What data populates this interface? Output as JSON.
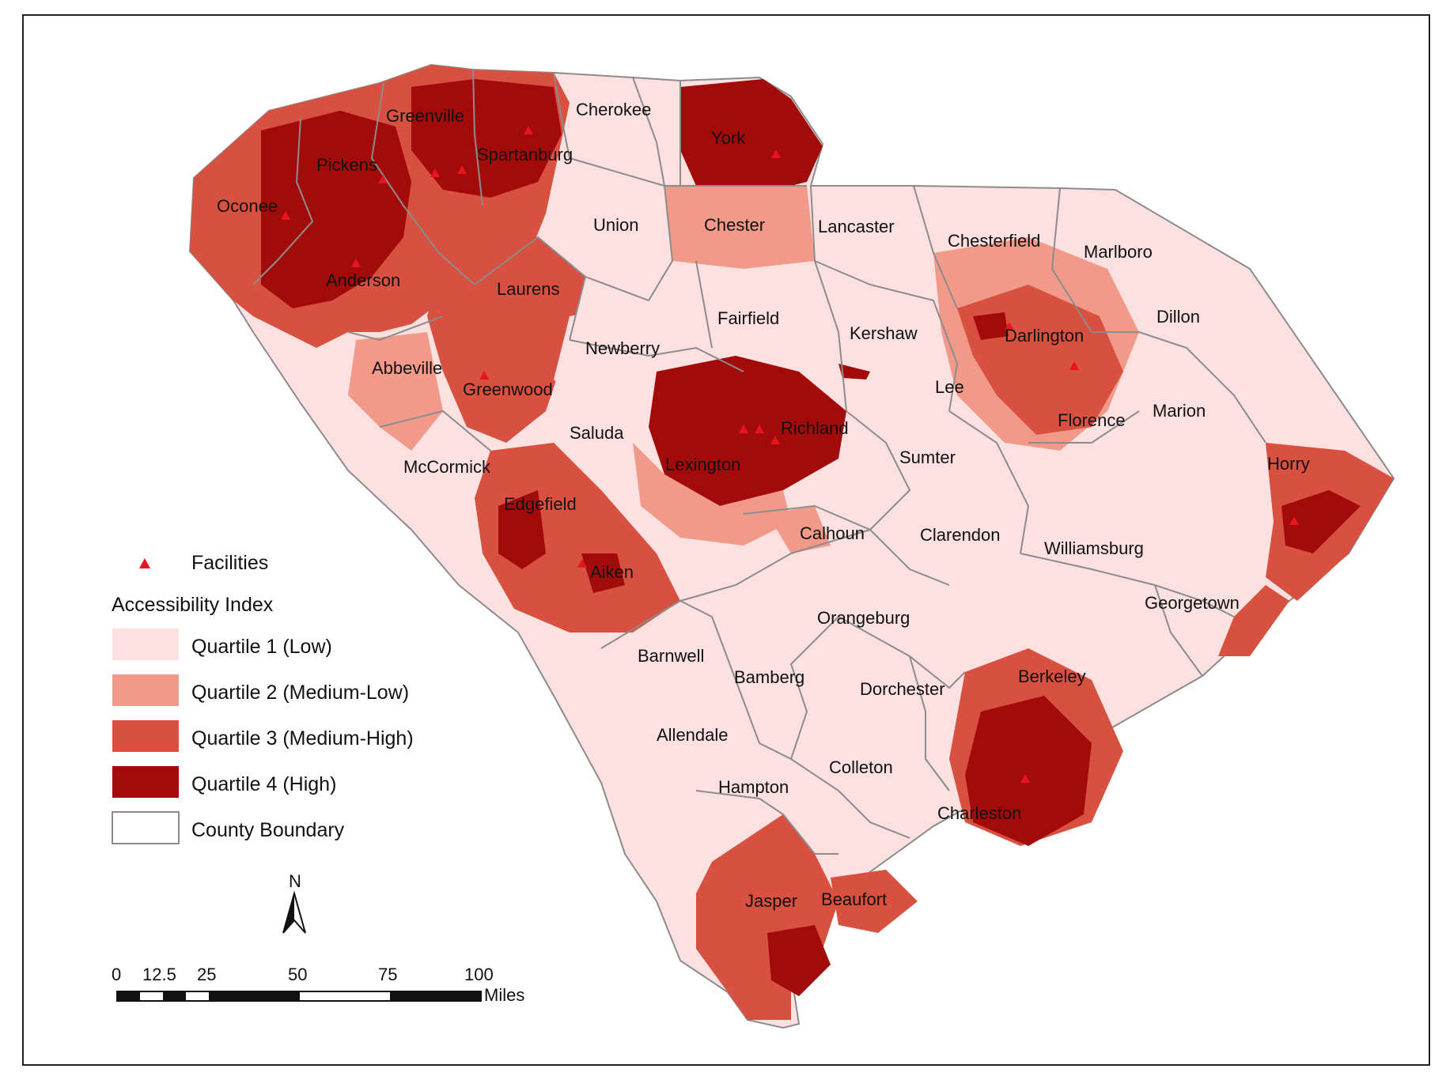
{
  "legend": {
    "facilities_label": "Facilities",
    "title": "Accessibility Index",
    "items": [
      {
        "label": "Quartile 1 (Low)",
        "color": "#fde0e0"
      },
      {
        "label": "Quartile 2 (Medium-Low)",
        "color": "#f29a8a"
      },
      {
        "label": "Quartile 3 (Medium-High)",
        "color": "#d8503f"
      },
      {
        "label": "Quartile 4 (High)",
        "color": "#a30a0a"
      }
    ],
    "boundary_label": "County Boundary",
    "boundary_color": "#8c8c8c",
    "facility_color": "#e8141e"
  },
  "north_arrow": {
    "label": "N"
  },
  "scale_bar": {
    "ticks": [
      "0",
      "12.5",
      "25",
      "50",
      "75",
      "100"
    ],
    "unit": "Miles"
  },
  "counties": [
    {
      "name": "Oconee",
      "quartile": 3
    },
    {
      "name": "Pickens",
      "quartile": 4
    },
    {
      "name": "Greenville",
      "quartile": 4
    },
    {
      "name": "Spartanburg",
      "quartile": 4
    },
    {
      "name": "Cherokee",
      "quartile": 1
    },
    {
      "name": "York",
      "quartile": 4
    },
    {
      "name": "Anderson",
      "quartile": 4
    },
    {
      "name": "Union",
      "quartile": 1
    },
    {
      "name": "Chester",
      "quartile": 2
    },
    {
      "name": "Lancaster",
      "quartile": 1
    },
    {
      "name": "Chesterfield",
      "quartile": 1
    },
    {
      "name": "Marlboro",
      "quartile": 1
    },
    {
      "name": "Laurens",
      "quartile": 3
    },
    {
      "name": "Fairfield",
      "quartile": 1
    },
    {
      "name": "Kershaw",
      "quartile": 1
    },
    {
      "name": "Darlington",
      "quartile": 3
    },
    {
      "name": "Dillon",
      "quartile": 1
    },
    {
      "name": "Newberry",
      "quartile": 1
    },
    {
      "name": "Abbeville",
      "quartile": 1
    },
    {
      "name": "Greenwood",
      "quartile": 3
    },
    {
      "name": "Lee",
      "quartile": 1
    },
    {
      "name": "Richland",
      "quartile": 4
    },
    {
      "name": "Florence",
      "quartile": 3
    },
    {
      "name": "Marion",
      "quartile": 1
    },
    {
      "name": "Saluda",
      "quartile": 1
    },
    {
      "name": "Lexington",
      "quartile": 4
    },
    {
      "name": "Sumter",
      "quartile": 1
    },
    {
      "name": "McCormick",
      "quartile": 1
    },
    {
      "name": "Horry",
      "quartile": 2
    },
    {
      "name": "Edgefield",
      "quartile": 2
    },
    {
      "name": "Calhoun",
      "quartile": 1
    },
    {
      "name": "Clarendon",
      "quartile": 1
    },
    {
      "name": "Williamsburg",
      "quartile": 1
    },
    {
      "name": "Aiken",
      "quartile": 3
    },
    {
      "name": "Georgetown",
      "quartile": 1
    },
    {
      "name": "Orangeburg",
      "quartile": 1
    },
    {
      "name": "Barnwell",
      "quartile": 1
    },
    {
      "name": "Bamberg",
      "quartile": 1
    },
    {
      "name": "Dorchester",
      "quartile": 1
    },
    {
      "name": "Berkeley",
      "quartile": 3
    },
    {
      "name": "Allendale",
      "quartile": 1
    },
    {
      "name": "Colleton",
      "quartile": 1
    },
    {
      "name": "Hampton",
      "quartile": 1
    },
    {
      "name": "Charleston",
      "quartile": 4
    },
    {
      "name": "Jasper",
      "quartile": 3
    },
    {
      "name": "Beaufort",
      "quartile": 3
    }
  ]
}
